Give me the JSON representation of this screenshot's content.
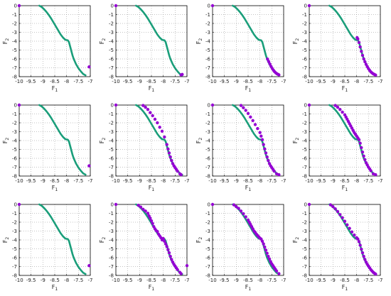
{
  "colors": {
    "front": "#1a9e7a",
    "points": "#9400d3",
    "grid": "#888888"
  },
  "chart_data": {
    "type": "scatter",
    "layout_grid": "3 rows x 4 columns of small multiples",
    "shared_axes": {
      "xlabel_main": "F",
      "xlabel_sub": "1",
      "ylabel_main": "F",
      "ylabel_sub": "2",
      "xlim": [
        -10,
        -7
      ],
      "ylim": [
        -8,
        0
      ],
      "xticks": [
        -10,
        -9.5,
        -9,
        -8.5,
        -8,
        -7.5,
        -7
      ],
      "xtick_labels": [
        "-10",
        "-9.5",
        "-9",
        "-8.5",
        "-8",
        "-7.5",
        "-7"
      ],
      "yticks": [
        0,
        -1,
        -2,
        -3,
        -4,
        -5,
        -6,
        -7,
        -8
      ],
      "ytick_labels": [
        "0",
        "-1",
        "-2",
        "-3",
        "-4",
        "-5",
        "-6",
        "-7",
        "-8"
      ],
      "grid": true
    },
    "pareto_front": {
      "color": "#1a9e7a",
      "x": [
        -9.15,
        -9.05,
        -8.95,
        -8.85,
        -8.75,
        -8.65,
        -8.55,
        -8.45,
        -8.35,
        -8.25,
        -8.15,
        -8.05,
        -7.95,
        -7.9,
        -7.85,
        -7.8,
        -7.75,
        -7.7,
        -7.6,
        -7.5,
        -7.4,
        -7.3,
        -7.2
      ],
      "y": [
        0,
        -0.15,
        -0.4,
        -0.7,
        -1.05,
        -1.45,
        -1.9,
        -2.35,
        -2.8,
        -3.25,
        -3.6,
        -3.85,
        -3.9,
        -4.1,
        -4.6,
        -5.1,
        -5.6,
        -6.0,
        -6.6,
        -7.05,
        -7.4,
        -7.7,
        -7.85
      ]
    },
    "panels": [
      {
        "row": 0,
        "col": 0,
        "points": {
          "x": [
            -10.0,
            -7.05
          ],
          "y": [
            0.0,
            -6.9
          ]
        }
      },
      {
        "row": 0,
        "col": 1,
        "points": {
          "x": [
            -10.0,
            -7.2,
            -7.25
          ],
          "y": [
            0.0,
            -7.75,
            -7.8
          ]
        }
      },
      {
        "row": 0,
        "col": 2,
        "points": {
          "x": [
            -10.0,
            -7.2,
            -7.23,
            -7.28,
            -7.33,
            -7.38,
            -7.43,
            -7.48,
            -7.53,
            -7.58,
            -7.63,
            -7.68
          ],
          "y": [
            0.0,
            -7.8,
            -7.75,
            -7.68,
            -7.58,
            -7.45,
            -7.28,
            -7.08,
            -6.85,
            -6.58,
            -6.3,
            -6.02
          ]
        }
      },
      {
        "row": 0,
        "col": 3,
        "points": {
          "x": [
            -10.0,
            -7.2,
            -7.25,
            -7.3,
            -7.35,
            -7.4,
            -7.45,
            -7.5,
            -7.55,
            -7.6,
            -7.65,
            -7.7,
            -7.75,
            -7.8,
            -7.85,
            -7.9,
            -7.95,
            -7.98
          ],
          "y": [
            0.0,
            -7.82,
            -7.75,
            -7.68,
            -7.58,
            -7.46,
            -7.3,
            -7.1,
            -6.88,
            -6.62,
            -6.32,
            -6.0,
            -5.6,
            -5.15,
            -4.65,
            -4.15,
            -3.75,
            -3.6
          ]
        }
      },
      {
        "row": 1,
        "col": 0,
        "points": {
          "x": [
            -10.0,
            -7.05
          ],
          "y": [
            0.0,
            -6.85
          ]
        }
      },
      {
        "row": 1,
        "col": 1,
        "points": {
          "x": [
            -10.0,
            -8.85,
            -8.75,
            -8.65,
            -8.55,
            -8.45,
            -8.35,
            -8.25,
            -8.15,
            -8.05,
            -7.95,
            -7.85,
            -7.8,
            -7.75,
            -7.7,
            -7.65,
            -7.6,
            -7.55,
            -7.5,
            -7.45,
            -7.4,
            -7.3,
            -7.25
          ],
          "y": [
            0.0,
            -0.05,
            -0.25,
            -0.5,
            -0.85,
            -1.2,
            -1.6,
            -2.0,
            -2.5,
            -2.95,
            -3.6,
            -4.45,
            -4.95,
            -5.4,
            -5.85,
            -6.25,
            -6.6,
            -6.85,
            -7.05,
            -7.25,
            -7.45,
            -7.75,
            -7.85
          ]
        }
      },
      {
        "row": 1,
        "col": 2,
        "points": {
          "x": [
            -10.0,
            -8.8,
            -8.7,
            -8.6,
            -8.5,
            -8.4,
            -8.3,
            -8.2,
            -8.1,
            -8.0,
            -7.95,
            -7.9,
            -7.85,
            -7.8,
            -7.75,
            -7.7,
            -7.65,
            -7.6,
            -7.55,
            -7.5,
            -7.45,
            -7.4,
            -7.3,
            -7.2
          ],
          "y": [
            0.0,
            -0.05,
            -0.3,
            -0.6,
            -0.95,
            -1.35,
            -1.75,
            -2.2,
            -2.65,
            -3.1,
            -3.5,
            -3.9,
            -4.45,
            -4.95,
            -5.4,
            -5.85,
            -6.25,
            -6.6,
            -6.85,
            -7.05,
            -7.25,
            -7.45,
            -7.75,
            -7.85
          ]
        }
      },
      {
        "row": 1,
        "col": 3,
        "points": {
          "x": [
            -10.0,
            -8.9,
            -8.8,
            -8.7,
            -8.6,
            -8.5,
            -8.45,
            -8.4,
            -8.35,
            -8.3,
            -8.25,
            -8.2,
            -8.15,
            -8.1,
            -8.05,
            -8.0,
            -7.95,
            -7.9,
            -7.85,
            -7.8,
            -7.75,
            -7.7,
            -7.65,
            -7.6,
            -7.55,
            -7.5,
            -7.45,
            -7.4,
            -7.3,
            -7.2
          ],
          "y": [
            0.0,
            -0.05,
            -0.25,
            -0.5,
            -0.8,
            -1.1,
            -1.35,
            -1.6,
            -1.85,
            -2.1,
            -2.35,
            -2.6,
            -2.85,
            -3.1,
            -3.3,
            -3.5,
            -3.7,
            -3.9,
            -4.3,
            -4.8,
            -5.3,
            -5.75,
            -6.15,
            -6.5,
            -6.75,
            -7.0,
            -7.2,
            -7.4,
            -7.75,
            -7.85
          ]
        }
      },
      {
        "row": 2,
        "col": 0,
        "points": {
          "x": [
            -10.0,
            -7.05
          ],
          "y": [
            0.0,
            -6.9
          ]
        }
      },
      {
        "row": 2,
        "col": 1,
        "points": {
          "x": [
            -10.0,
            -9.05,
            -8.95,
            -8.85,
            -8.75,
            -8.65,
            -8.6,
            -8.55,
            -8.5,
            -8.45,
            -8.4,
            -8.35,
            -8.3,
            -8.25,
            -8.2,
            -8.15,
            -8.1,
            -8.05,
            -8.0,
            -7.95,
            -7.9,
            -7.85,
            -7.8,
            -7.75,
            -7.7,
            -7.65,
            -7.6,
            -7.55,
            -7.5,
            -7.45,
            -7.4,
            -7.3,
            -7.25,
            -7.0
          ],
          "y": [
            0.0,
            -0.1,
            -0.3,
            -0.55,
            -0.75,
            -1.0,
            -1.3,
            -1.55,
            -1.85,
            -2.15,
            -2.5,
            -2.75,
            -2.95,
            -3.05,
            -3.35,
            -3.55,
            -3.75,
            -4.0,
            -3.85,
            -4.15,
            -4.45,
            -4.75,
            -5.1,
            -5.45,
            -5.85,
            -6.2,
            -6.5,
            -6.75,
            -6.95,
            -7.15,
            -7.35,
            -7.65,
            -7.8,
            -6.9
          ]
        }
      },
      {
        "row": 2,
        "col": 2,
        "points": {
          "x": [
            -10.0,
            -9.1,
            -9.0,
            -8.9,
            -8.8,
            -8.7,
            -8.6,
            -8.5,
            -8.45,
            -8.4,
            -8.35,
            -8.3,
            -8.25,
            -8.2,
            -8.15,
            -8.1,
            -8.05,
            -8.0,
            -7.95,
            -7.9,
            -7.85,
            -7.8,
            -7.75,
            -7.7,
            -7.65,
            -7.6,
            -7.55,
            -7.5,
            -7.45,
            -7.4,
            -7.35,
            -7.3,
            -7.2
          ],
          "y": [
            0.0,
            -0.05,
            -0.25,
            -0.45,
            -0.75,
            -1.05,
            -1.4,
            -1.75,
            -2.0,
            -2.25,
            -2.5,
            -2.75,
            -3.0,
            -3.15,
            -3.35,
            -3.5,
            -3.65,
            -3.8,
            -3.9,
            -4.15,
            -4.45,
            -4.8,
            -5.15,
            -5.5,
            -5.85,
            -6.15,
            -6.45,
            -6.7,
            -6.9,
            -7.1,
            -7.3,
            -7.5,
            -7.8
          ]
        }
      },
      {
        "row": 2,
        "col": 3,
        "points": {
          "x": [
            -10.0,
            -9.1,
            -9.0,
            -8.9,
            -8.8,
            -8.7,
            -8.6,
            -8.5,
            -8.4,
            -8.3,
            -8.2,
            -8.1,
            -8.0,
            -7.95,
            -7.9,
            -7.85,
            -7.8,
            -7.75,
            -7.7,
            -7.65,
            -7.6,
            -7.55,
            -7.5,
            -7.45,
            -7.4,
            -7.35,
            -7.3,
            -7.25,
            -7.2
          ],
          "y": [
            0.0,
            -0.05,
            -0.25,
            -0.5,
            -0.8,
            -1.15,
            -1.5,
            -1.9,
            -2.3,
            -2.7,
            -3.1,
            -3.45,
            -3.75,
            -3.9,
            -4.2,
            -4.6,
            -5.05,
            -5.45,
            -5.85,
            -6.2,
            -6.5,
            -6.75,
            -6.95,
            -7.15,
            -7.35,
            -7.5,
            -7.65,
            -7.75,
            -7.85
          ]
        }
      }
    ]
  }
}
